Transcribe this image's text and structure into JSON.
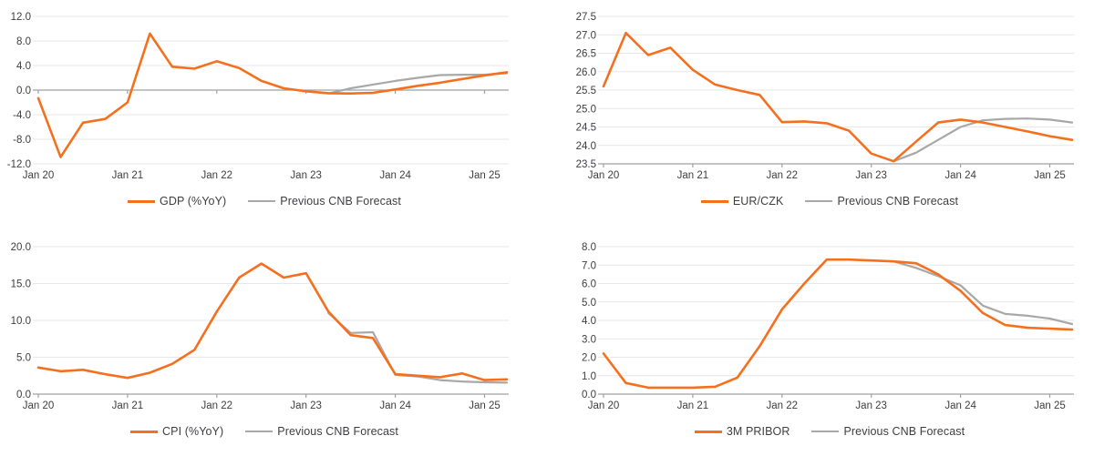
{
  "page": {
    "background": "#FFFFFF"
  },
  "styles": {
    "accent_orange": "#F4701E",
    "forecast_gray": "#A8A8A8",
    "gridline_color": "#E7E7E7",
    "axis_color": "#9EA0A3",
    "label_color": "#3E3E42"
  },
  "x_axis": {
    "tick_labels": [
      "Jan 20",
      "Jan 21",
      "Jan 22",
      "Jan 23",
      "Jan 24",
      "Jan 25"
    ],
    "tick_indices": [
      0,
      4,
      8,
      12,
      16,
      20
    ],
    "points_count": 22
  },
  "chart_data": [
    {
      "id": "gdp",
      "type": "line",
      "position": "top-left",
      "legend": {
        "main": "GDP (%YoY)",
        "forecast": "Previous CNB Forecast"
      },
      "y_axis": {
        "min": -12,
        "max": 12,
        "step": 4,
        "axis_at": 0,
        "tick_labels": [
          "12.0",
          "8.0",
          "4.0",
          "0.0",
          "-4.0",
          "-8.0",
          "-12.0"
        ]
      },
      "series": [
        {
          "name": "GDP (%YoY)",
          "color_key": "accent_orange",
          "start_index": 0,
          "values": [
            -1.3,
            -10.9,
            -5.3,
            -4.7,
            -2.0,
            9.2,
            3.8,
            3.5,
            4.7,
            3.6,
            1.5,
            0.3,
            -0.2,
            -0.5,
            -0.55,
            -0.45,
            0.1,
            0.7,
            1.2,
            1.8,
            2.4,
            2.9
          ]
        },
        {
          "name": "Previous CNB Forecast",
          "color_key": "forecast_gray",
          "start_index": 13,
          "values": [
            -0.55,
            0.3,
            0.9,
            1.5,
            2.0,
            2.45,
            2.5,
            2.5,
            2.75
          ]
        }
      ]
    },
    {
      "id": "eurczk",
      "type": "line",
      "position": "top-right",
      "legend": {
        "main": "EUR/CZK",
        "forecast": "Previous CNB Forecast"
      },
      "y_axis": {
        "min": 23.5,
        "max": 27.5,
        "step": 0.5,
        "axis_at": 23.5,
        "tick_labels": [
          "27.5",
          "27.0",
          "26.5",
          "26.0",
          "25.5",
          "25.0",
          "24.5",
          "24.0",
          "23.5"
        ]
      },
      "series": [
        {
          "name": "EUR/CZK",
          "color_key": "accent_orange",
          "start_index": 0,
          "values": [
            25.6,
            27.05,
            26.45,
            26.65,
            26.05,
            25.65,
            25.5,
            25.37,
            24.63,
            24.65,
            24.6,
            24.4,
            23.78,
            23.57,
            24.1,
            24.62,
            24.7,
            24.62,
            24.5,
            24.38,
            24.25,
            24.15
          ]
        },
        {
          "name": "Previous CNB Forecast",
          "color_key": "forecast_gray",
          "start_index": 13,
          "values": [
            23.57,
            23.8,
            24.15,
            24.5,
            24.68,
            24.72,
            24.73,
            24.7,
            24.62
          ]
        }
      ]
    },
    {
      "id": "cpi",
      "type": "line",
      "position": "bottom-left",
      "legend": {
        "main": "CPI (%YoY)",
        "forecast": "Previous CNB Forecast"
      },
      "y_axis": {
        "min": 0,
        "max": 20,
        "step": 5,
        "axis_at": 0,
        "tick_labels": [
          "20.0",
          "15.0",
          "10.0",
          "5.0",
          "0.0"
        ]
      },
      "series": [
        {
          "name": "CPI (%YoY)",
          "color_key": "accent_orange",
          "start_index": 0,
          "values": [
            3.6,
            3.1,
            3.3,
            2.7,
            2.2,
            2.9,
            4.1,
            6.0,
            11.2,
            15.8,
            17.7,
            15.8,
            16.4,
            11.2,
            8.0,
            7.6,
            2.7,
            2.5,
            2.3,
            2.8,
            1.9,
            2.0
          ]
        },
        {
          "name": "Previous CNB Forecast",
          "color_key": "forecast_gray",
          "start_index": 13,
          "values": [
            11.0,
            8.3,
            8.4,
            2.6,
            2.4,
            1.9,
            1.7,
            1.6,
            1.55
          ]
        }
      ]
    },
    {
      "id": "pribor",
      "type": "line",
      "position": "bottom-right",
      "legend": {
        "main": "3M PRIBOR",
        "forecast": "Previous CNB Forecast"
      },
      "y_axis": {
        "min": 0,
        "max": 8,
        "step": 1,
        "axis_at": 0,
        "tick_labels": [
          "8.0",
          "7.0",
          "6.0",
          "5.0",
          "4.0",
          "3.0",
          "2.0",
          "1.0",
          "0.0"
        ]
      },
      "series": [
        {
          "name": "3M PRIBOR",
          "color_key": "accent_orange",
          "start_index": 0,
          "values": [
            2.2,
            0.6,
            0.35,
            0.35,
            0.35,
            0.4,
            0.9,
            2.6,
            4.6,
            6.0,
            7.3,
            7.3,
            7.25,
            7.2,
            7.1,
            6.5,
            5.6,
            4.4,
            3.75,
            3.6,
            3.55,
            3.5
          ]
        },
        {
          "name": "Previous CNB Forecast",
          "color_key": "forecast_gray",
          "start_index": 13,
          "values": [
            7.2,
            6.85,
            6.4,
            5.9,
            4.8,
            4.35,
            4.25,
            4.1,
            3.8
          ]
        }
      ]
    }
  ]
}
